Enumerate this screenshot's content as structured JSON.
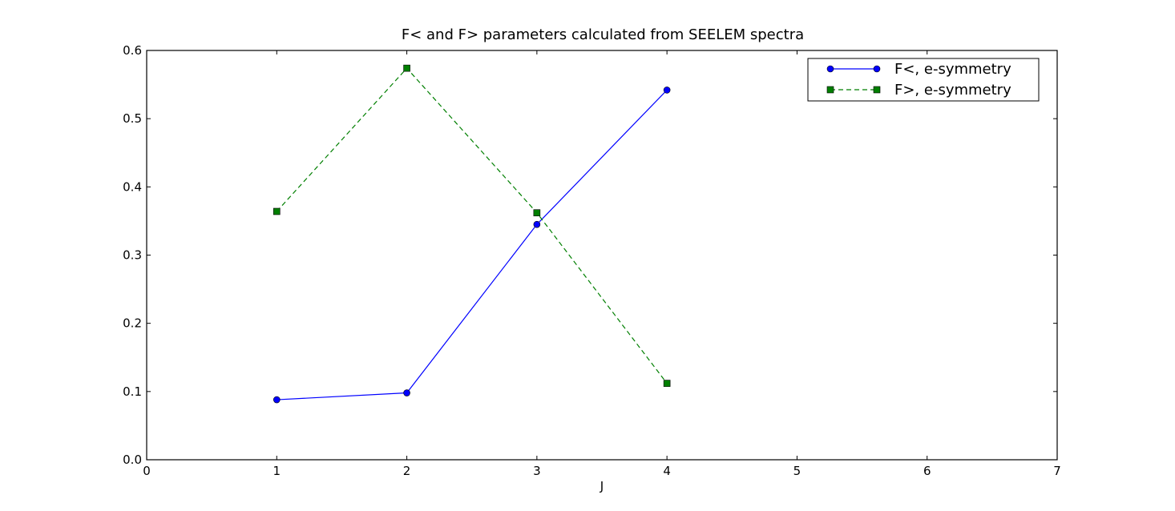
{
  "chart_data": {
    "type": "line",
    "title": "F< and F> parameters calculated from SEELEM spectra",
    "xlabel": "J",
    "ylabel": "",
    "xlim": [
      0,
      7
    ],
    "ylim": [
      0.0,
      0.6
    ],
    "xticks": [
      "0",
      "1",
      "2",
      "3",
      "4",
      "5",
      "6",
      "7"
    ],
    "yticks": [
      "0.0",
      "0.1",
      "0.2",
      "0.3",
      "0.4",
      "0.5",
      "0.6"
    ],
    "grid": false,
    "legend_position": "top-right",
    "series": [
      {
        "name": "F<, e-symmetry",
        "x": [
          1,
          2,
          3,
          4
        ],
        "y": [
          0.088,
          0.098,
          0.345,
          0.542
        ],
        "color": "#0000ff",
        "line_style": "solid",
        "marker": "circle"
      },
      {
        "name": "F>, e-symmetry",
        "x": [
          1,
          2,
          3,
          4
        ],
        "y": [
          0.364,
          0.574,
          0.362,
          0.112
        ],
        "color": "#007f00",
        "line_style": "dashed",
        "marker": "square"
      }
    ]
  }
}
